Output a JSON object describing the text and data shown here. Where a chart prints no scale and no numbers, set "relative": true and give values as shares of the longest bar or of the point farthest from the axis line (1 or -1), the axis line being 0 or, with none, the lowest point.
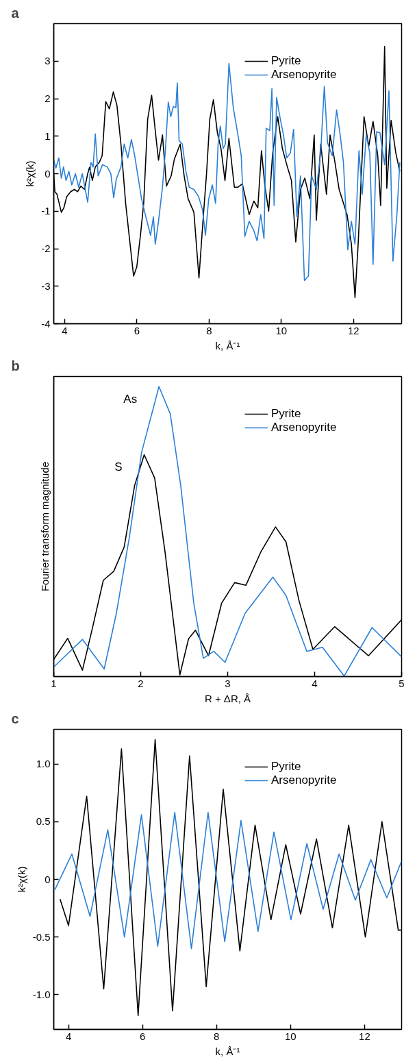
{
  "chart_data": [
    {
      "type": "line",
      "title": "a",
      "xlabel": "k, Å⁻¹",
      "ylabel": "k²χ(k)",
      "xlim": [
        3.7,
        13.33
      ],
      "ylim": [
        -4,
        4.0
      ],
      "xticks": [
        4,
        6,
        8,
        10,
        12
      ],
      "yticks": [
        -4,
        -3,
        -2,
        -1,
        0,
        1,
        2,
        3
      ],
      "grid": false,
      "legend": "top right",
      "series": [
        {
          "name": "Pyrite",
          "color": "#000000",
          "x": [
            3.7,
            3.73,
            3.79,
            3.91,
            3.98,
            4.06,
            4.17,
            4.27,
            4.36,
            4.45,
            4.55,
            4.64,
            4.69,
            4.77,
            4.85,
            4.96,
            5.04,
            5.14,
            5.24,
            5.35,
            5.45,
            5.56,
            5.69,
            5.8,
            5.91,
            6.0,
            6.1,
            6.19,
            6.3,
            6.41,
            6.51,
            6.6,
            6.71,
            6.82,
            6.95,
            7.04,
            7.2,
            7.31,
            7.42,
            7.58,
            7.72,
            7.83,
            7.93,
            8.02,
            8.12,
            8.23,
            8.33,
            8.44,
            8.55,
            8.7,
            8.8,
            8.92,
            9.11,
            9.24,
            9.35,
            9.45,
            9.55,
            9.65,
            9.76,
            9.9,
            10.03,
            10.15,
            10.28,
            10.4,
            10.53,
            10.65,
            10.79,
            10.91,
            10.97,
            11.09,
            11.25,
            11.35,
            11.47,
            11.6,
            11.82,
            11.94,
            12.04,
            12.13,
            12.29,
            12.42,
            12.54,
            12.67,
            12.75,
            12.86,
            12.92,
            13.04,
            13.17,
            13.28
          ],
          "values": [
            0.0,
            -0.48,
            -0.55,
            -1.03,
            -0.91,
            -0.61,
            -0.48,
            -0.42,
            -0.48,
            -0.33,
            -0.42,
            0.0,
            0.17,
            -0.18,
            0.18,
            0.3,
            0.48,
            1.92,
            1.73,
            2.18,
            1.82,
            0.79,
            -0.79,
            -1.76,
            -2.73,
            -2.48,
            -1.64,
            -0.79,
            1.45,
            2.09,
            1.15,
            0.36,
            1.03,
            -0.33,
            -0.06,
            0.39,
            0.79,
            -0.06,
            -0.67,
            -1.03,
            -2.78,
            -1.27,
            0.0,
            1.45,
            1.97,
            1.09,
            0.67,
            -0.18,
            0.94,
            -0.36,
            -0.36,
            -0.27,
            -1.09,
            -0.73,
            -0.91,
            0.61,
            -0.36,
            -1.0,
            0.55,
            1.52,
            0.67,
            0.24,
            -0.18,
            -1.82,
            -0.42,
            -0.12,
            -0.67,
            1.03,
            -1.24,
            0.79,
            -0.55,
            1.03,
            0.39,
            -0.42,
            -1.09,
            -1.88,
            -3.3,
            -1.82,
            1.52,
            0.73,
            1.39,
            0.48,
            -0.85,
            3.39,
            -0.39,
            1.42,
            0.55,
            0.06
          ]
        },
        {
          "name": "Arsenopyrite",
          "color": "#2a80d8",
          "x": [
            3.7,
            3.76,
            3.84,
            3.91,
            3.97,
            4.04,
            4.12,
            4.2,
            4.3,
            4.39,
            4.49,
            4.56,
            4.64,
            4.73,
            4.79,
            4.85,
            4.93,
            5.05,
            5.18,
            5.28,
            5.36,
            5.43,
            5.56,
            5.65,
            5.75,
            5.85,
            5.94,
            6.03,
            6.13,
            6.25,
            6.38,
            6.46,
            6.51,
            6.6,
            6.71,
            6.79,
            6.87,
            6.94,
            7.01,
            7.08,
            7.12,
            7.17,
            7.26,
            7.36,
            7.45,
            7.58,
            7.71,
            7.82,
            7.9,
            7.99,
            8.09,
            8.18,
            8.25,
            8.31,
            8.39,
            8.45,
            8.55,
            8.67,
            8.8,
            8.89,
            8.99,
            9.11,
            9.24,
            9.33,
            9.43,
            9.52,
            9.58,
            9.68,
            9.74,
            9.8,
            9.87,
            9.96,
            10.06,
            10.15,
            10.25,
            10.34,
            10.43,
            10.53,
            10.64,
            10.75,
            10.84,
            10.97,
            11.09,
            11.19,
            11.28,
            11.41,
            11.53,
            11.63,
            11.72,
            11.84,
            11.94,
            12.04,
            12.15,
            12.24,
            12.35,
            12.45,
            12.54,
            12.64,
            12.73,
            12.86,
            12.98,
            13.09,
            13.2,
            13.28
          ],
          "values": [
            0.36,
            0.15,
            0.42,
            -0.12,
            0.18,
            -0.18,
            0.06,
            -0.3,
            0.0,
            -0.36,
            0.0,
            -0.36,
            -0.76,
            0.3,
            0.18,
            1.06,
            -0.06,
            0.24,
            0.18,
            0.0,
            -0.64,
            -0.15,
            0.18,
            0.79,
            0.42,
            0.91,
            0.48,
            -0.06,
            -0.67,
            -1.15,
            -1.64,
            -1.15,
            -1.88,
            -1.27,
            -0.36,
            0.61,
            1.91,
            1.52,
            1.79,
            1.76,
            2.42,
            0.88,
            0.79,
            0.06,
            -0.36,
            -0.42,
            -0.61,
            -0.97,
            -1.64,
            -0.67,
            -0.3,
            -0.79,
            0.79,
            1.27,
            0.67,
            0.79,
            2.94,
            1.76,
            1.03,
            0.48,
            -1.67,
            -1.27,
            -1.52,
            -1.79,
            -1.09,
            -1.73,
            1.21,
            1.15,
            2.27,
            -0.85,
            2.03,
            1.52,
            1.03,
            0.42,
            0.55,
            1.18,
            -1.15,
            -0.06,
            -2.85,
            -2.73,
            -0.06,
            -0.42,
            0.55,
            2.33,
            0.82,
            0.48,
            1.7,
            1.03,
            0.3,
            -2.03,
            -1.27,
            -1.88,
            0.61,
            -0.55,
            1.03,
            0.55,
            -2.42,
            1.12,
            1.09,
            0.24,
            2.21,
            -2.33,
            -1.09,
            0.3
          ]
        }
      ]
    },
    {
      "type": "line",
      "title": "b",
      "xlabel": "R + ΔR, Å",
      "ylabel": "Fourier transform magnitude",
      "relative": true,
      "xlim": [
        1,
        5
      ],
      "xticks": [
        1,
        2,
        3,
        4,
        5
      ],
      "tick_labels": "x",
      "grid": false,
      "legend": "top right",
      "annotations": [
        "As",
        "S"
      ],
      "series": [
        {
          "name": "Pyrite",
          "color": "#000000",
          "x": [
            1.0,
            1.16,
            1.33,
            1.45,
            1.57,
            1.69,
            1.81,
            1.93,
            2.04,
            2.16,
            2.28,
            2.45,
            2.55,
            2.63,
            2.78,
            2.93,
            3.08,
            3.21,
            3.38,
            3.55,
            3.67,
            3.82,
            3.98,
            4.23,
            4.62,
            5.0
          ],
          "values": [
            0.059,
            0.132,
            0.022,
            0.174,
            0.332,
            0.363,
            0.447,
            0.659,
            0.765,
            0.685,
            0.429,
            0.006,
            0.13,
            0.16,
            0.072,
            0.253,
            0.324,
            0.315,
            0.429,
            0.516,
            0.465,
            0.262,
            0.094,
            0.172,
            0.072,
            0.196
          ]
        },
        {
          "name": "Arsenopyrite",
          "color": "#2a80d8",
          "x": [
            1.0,
            1.33,
            1.58,
            1.72,
            1.87,
            2.01,
            2.21,
            2.34,
            2.46,
            2.61,
            2.72,
            2.84,
            2.97,
            3.2,
            3.52,
            3.67,
            3.91,
            4.09,
            4.34,
            4.66,
            5.0
          ],
          "values": [
            0.033,
            0.128,
            0.026,
            0.218,
            0.482,
            0.773,
            1.0,
            0.906,
            0.659,
            0.253,
            0.063,
            0.087,
            0.049,
            0.218,
            0.343,
            0.28,
            0.087,
            0.101,
            0.002,
            0.169,
            0.068
          ]
        }
      ]
    },
    {
      "type": "line",
      "title": "c",
      "xlabel": "k, Å⁻¹",
      "ylabel": "k²χ(k)",
      "xlim": [
        3.6,
        13.0
      ],
      "ylim": [
        -1.3,
        1.3
      ],
      "xticks": [
        4,
        6,
        8,
        10,
        12
      ],
      "yticks": [
        {
          "value": -1.0,
          "label": "-1.0"
        },
        {
          "value": -0.5,
          "label": "-0.5"
        },
        0,
        {
          "value": 0.5,
          "label": "0.5"
        },
        {
          "value": 1.0,
          "label": "1.0"
        }
      ],
      "grid": false,
      "legend": "top right",
      "series": [
        {
          "name": "Pyrite",
          "color": "#000000",
          "x": [
            3.77,
            4.0,
            4.49,
            4.95,
            5.43,
            5.88,
            6.34,
            6.81,
            7.27,
            7.72,
            8.18,
            8.63,
            9.04,
            9.47,
            9.87,
            10.27,
            10.7,
            11.13,
            11.57,
            12.02,
            12.47,
            12.91,
            12.99
          ],
          "values": [
            -0.17,
            -0.4,
            0.72,
            -0.95,
            1.13,
            -1.18,
            1.21,
            -1.14,
            1.07,
            -0.93,
            0.78,
            -0.62,
            0.47,
            -0.35,
            0.3,
            -0.3,
            0.35,
            -0.42,
            0.47,
            -0.5,
            0.5,
            -0.44,
            -0.44
          ]
        },
        {
          "name": "Arsenopyrite",
          "color": "#2a80d8",
          "x": [
            3.63,
            4.09,
            4.58,
            5.06,
            5.51,
            5.97,
            6.41,
            6.87,
            7.32,
            7.77,
            8.22,
            8.66,
            9.12,
            9.55,
            10.01,
            10.44,
            10.88,
            11.31,
            11.75,
            12.17,
            12.6,
            12.99
          ],
          "values": [
            -0.09,
            0.22,
            -0.32,
            0.43,
            -0.5,
            0.56,
            -0.58,
            0.58,
            -0.6,
            0.58,
            -0.54,
            0.51,
            -0.45,
            0.41,
            -0.35,
            0.31,
            -0.26,
            0.22,
            -0.18,
            0.17,
            -0.16,
            0.15
          ]
        }
      ]
    }
  ]
}
